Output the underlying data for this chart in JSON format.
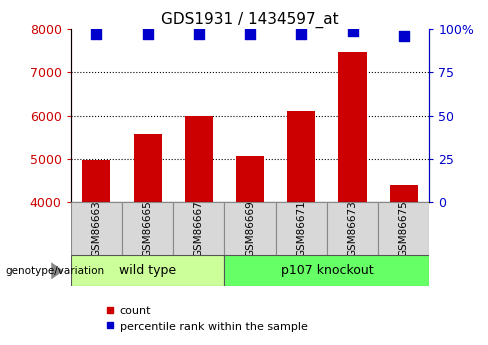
{
  "title": "GDS1931 / 1434597_at",
  "samples": [
    "GSM86663",
    "GSM86665",
    "GSM86667",
    "GSM86669",
    "GSM86671",
    "GSM86673",
    "GSM86675"
  ],
  "bar_values": [
    4980,
    5580,
    5980,
    5060,
    6100,
    7480,
    4380
  ],
  "bar_bottom": 4000,
  "percentile_values": [
    97,
    97,
    97,
    97,
    97,
    99,
    96
  ],
  "bar_color": "#cc0000",
  "dot_color": "#0000cc",
  "ylim_left": [
    4000,
    8000
  ],
  "ylim_right": [
    0,
    100
  ],
  "yticks_left": [
    4000,
    5000,
    6000,
    7000,
    8000
  ],
  "yticks_right": [
    0,
    25,
    50,
    75,
    100
  ],
  "yticklabels_right": [
    "0",
    "25",
    "50",
    "75",
    "100%"
  ],
  "grid_values": [
    5000,
    6000,
    7000
  ],
  "group1_label": "wild type",
  "group2_label": "p107 knockout",
  "group1_indices": [
    0,
    1,
    2
  ],
  "group2_indices": [
    3,
    4,
    5,
    6
  ],
  "genotype_label": "genotype/variation",
  "legend_bar_label": "count",
  "legend_dot_label": "percentile rank within the sample",
  "bg_color_group1": "#ccff99",
  "bg_color_group2": "#66ff66",
  "bg_color_sample": "#d8d8d8",
  "tick_label_color_left": "#cc0000",
  "tick_label_color_right": "#0000cc",
  "bar_width": 0.55,
  "dot_size": 50,
  "figsize": [
    4.88,
    3.45
  ],
  "dpi": 100
}
